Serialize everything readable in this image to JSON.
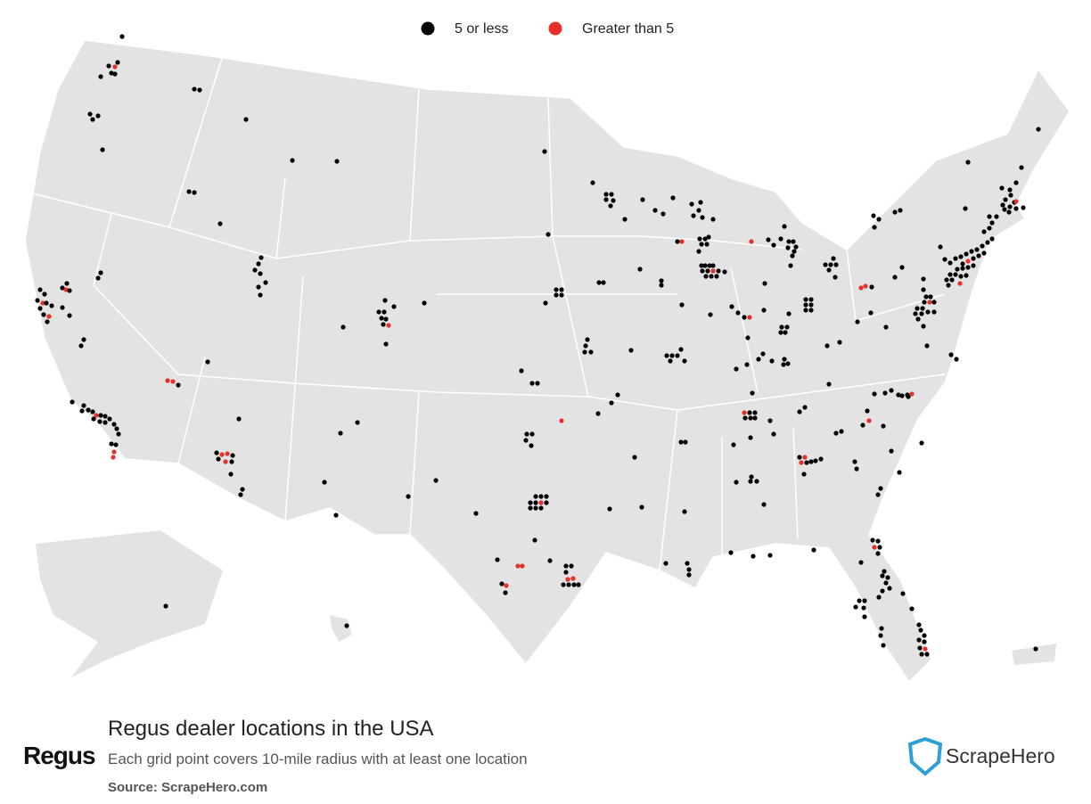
{
  "legend": [
    {
      "label": "5 or less",
      "color": "#000000"
    },
    {
      "label": "Greater than 5",
      "color": "#e8302a"
    }
  ],
  "title": "Regus dealer locations in the USA",
  "subtitle": "Each grid point covers 10-mile radius with at least one location",
  "source": "Source: ScrapeHero.com",
  "brand": "Regus",
  "publisher": "ScrapeHero"
}
